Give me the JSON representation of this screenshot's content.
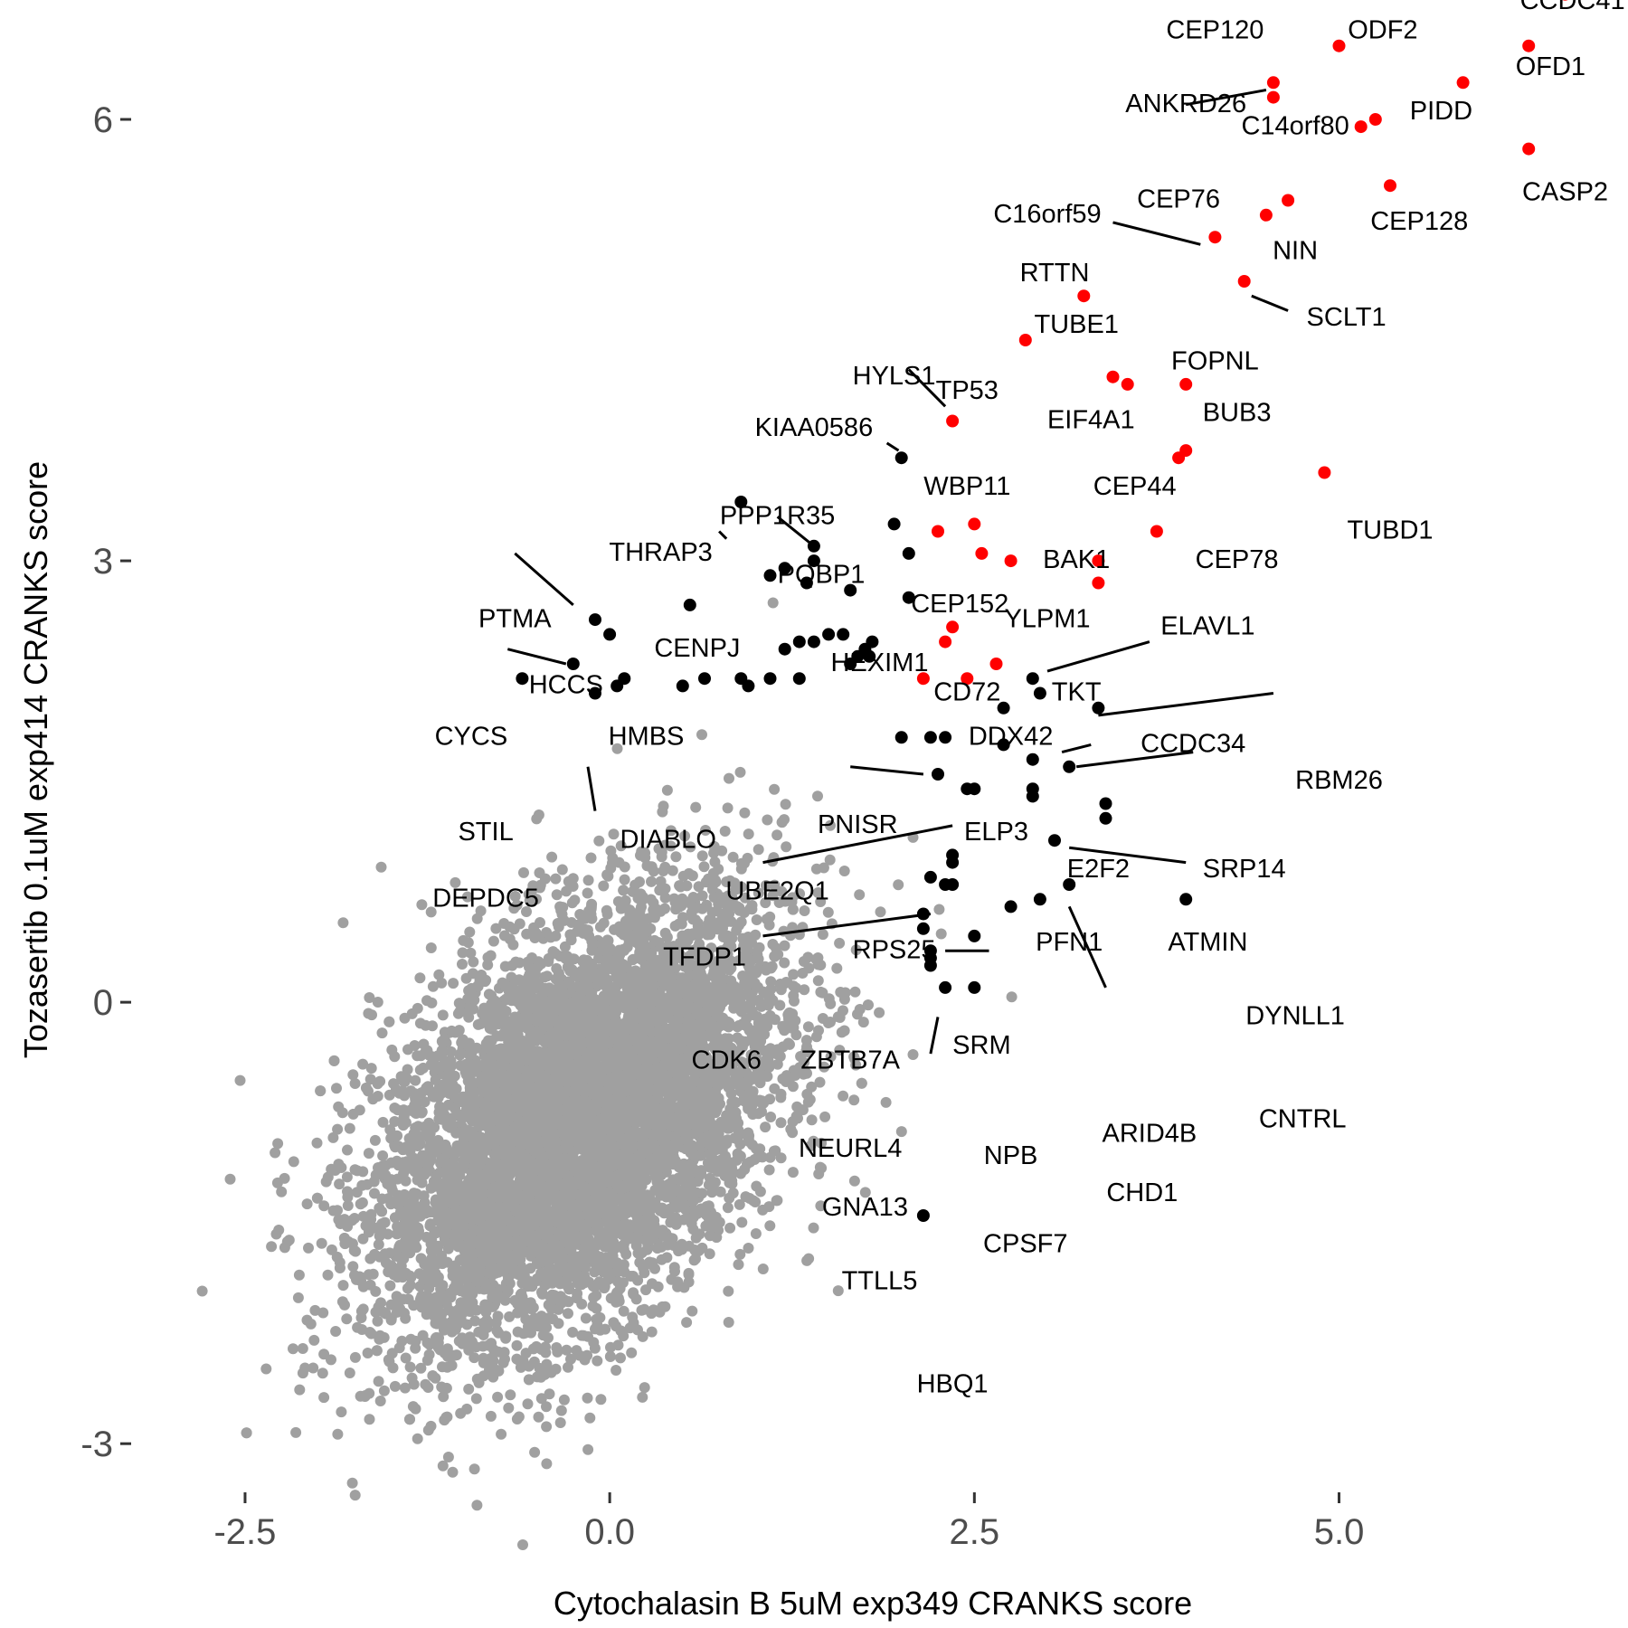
{
  "chart_data": {
    "type": "scatter",
    "xlabel": "Cytochalasin B 5uM exp349 CRANKS score",
    "ylabel": "Tozasertib 0.1uM exp414 CRANKS score",
    "xlim": [
      -3.25,
      6.95
    ],
    "ylim": [
      -3.3,
      6.75
    ],
    "xticks": [
      -2.5,
      0.0,
      2.5,
      5.0
    ],
    "xtick_labels": [
      "-2.5",
      "0.0",
      "2.5",
      "5.0"
    ],
    "yticks": [
      -3,
      0,
      3,
      6
    ],
    "ytick_labels": [
      "-3",
      "0",
      "3",
      "6"
    ],
    "grid": false,
    "legend": "none",
    "colors": {
      "background": "#a0a0a0",
      "hit": "#ff0000",
      "labeled": "#000000"
    },
    "background_cloud": {
      "description_free_params": true,
      "center": [
        -0.2,
        -0.8
      ],
      "count": 7000,
      "x_sd": 0.6,
      "y_sd": 0.6,
      "correlation": 0.45
    },
    "series": [
      {
        "color": "#ff0000",
        "points": [
          {
            "label": "C2CD3",
            "x": 6.65,
            "y": 7.35
          },
          {
            "label": "KIAA0753",
            "x": 6.75,
            "y": 7.2
          },
          {
            "label": "PIBF1",
            "x": 6.45,
            "y": 6.95
          },
          {
            "label": "CCDC41",
            "x": 6.55,
            "y": 6.85
          },
          {
            "label": "OFD1",
            "x": 6.3,
            "y": 6.5
          },
          {
            "label": "CRADD",
            "x": 5.0,
            "y": 6.5
          },
          {
            "label": "ODF2",
            "x": 5.85,
            "y": 6.25
          },
          {
            "label": "CEP120",
            "x": 4.55,
            "y": 6.25
          },
          {
            "label": "ANKRD26",
            "x": 4.55,
            "y": 6.15
          },
          {
            "label": "PIDD",
            "x": 5.25,
            "y": 6.0
          },
          {
            "label": "C14orf80",
            "x": 5.15,
            "y": 5.95
          },
          {
            "label": "CASP2",
            "x": 6.3,
            "y": 5.8
          },
          {
            "label": "CEP128",
            "x": 5.35,
            "y": 5.55
          },
          {
            "label": "CEP76",
            "x": 4.65,
            "y": 5.45
          },
          {
            "label": "NIN",
            "x": 4.5,
            "y": 5.35
          },
          {
            "label": "C16orf59",
            "x": 4.15,
            "y": 5.2
          },
          {
            "label": "SCLT1",
            "x": 4.35,
            "y": 4.9
          },
          {
            "label": "RTTN",
            "x": 3.25,
            "y": 4.8
          },
          {
            "label": "TUBE1",
            "x": 2.85,
            "y": 4.5
          },
          {
            "label": "FOPNL",
            "x": 3.45,
            "y": 4.25
          },
          {
            "label": "EIF4A1",
            "x": 3.55,
            "y": 4.2
          },
          {
            "label": "BUB3",
            "x": 3.95,
            "y": 4.2
          },
          {
            "label": "TP53",
            "x": 2.35,
            "y": 3.95
          },
          {
            "label": "CEP44",
            "x": 3.95,
            "y": 3.75
          },
          {
            "label": "CEP44b",
            "x": 3.9,
            "y": 3.7
          },
          {
            "label": "TUBD1",
            "x": 4.9,
            "y": 3.6
          },
          {
            "label": "WBP11",
            "x": 2.5,
            "y": 3.25
          },
          {
            "label": "WBP11b",
            "x": 2.25,
            "y": 3.2
          },
          {
            "label": "CEP78",
            "x": 3.75,
            "y": 3.2
          },
          {
            "label": "BAK1",
            "x": 3.35,
            "y": 2.85
          },
          {
            "label": "YLPM1",
            "x": 2.55,
            "y": 3.05
          },
          {
            "label": "YLPM1b",
            "x": 2.75,
            "y": 3.0
          },
          {
            "label": "ELAVL1",
            "x": 3.35,
            "y": 3.0
          },
          {
            "label": "CD72",
            "x": 2.35,
            "y": 2.55
          },
          {
            "label": "DDX42",
            "x": 2.3,
            "y": 2.45
          },
          {
            "label": "DDX42b",
            "x": 2.65,
            "y": 2.3
          },
          {
            "label": "CCDC34",
            "x": 2.45,
            "y": 2.2
          },
          {
            "label": "CCDC34b",
            "x": 2.15,
            "y": 2.2
          }
        ]
      },
      {
        "color": "#000000",
        "points": [
          {
            "label": "KIAA0586",
            "x": 2.0,
            "y": 3.7
          },
          {
            "label": "THRAP3",
            "x": 0.9,
            "y": 3.4
          },
          {
            "label": "PPP1R35",
            "x": 1.4,
            "y": 3.1
          },
          {
            "label": "PQBP1",
            "x": 1.95,
            "y": 3.25
          },
          {
            "label": "CEP152",
            "x": 2.05,
            "y": 3.05
          },
          {
            "label": "HEXIM1",
            "x": 1.4,
            "y": 3.0
          },
          {
            "label": "CENPJ",
            "x": 1.1,
            "y": 2.9
          },
          {
            "label": "p1",
            "x": 1.2,
            "y": 2.95
          },
          {
            "label": "p2",
            "x": 1.35,
            "y": 2.85
          },
          {
            "label": "p3",
            "x": 1.65,
            "y": 2.8
          },
          {
            "label": "CD72k",
            "x": 2.05,
            "y": 2.75
          },
          {
            "label": "PTMA",
            "x": 0.55,
            "y": 2.7
          },
          {
            "label": "HCCS",
            "x": -0.1,
            "y": 2.6
          },
          {
            "label": "HMBS",
            "x": 0.0,
            "y": 2.5
          },
          {
            "label": "p4",
            "x": 1.3,
            "y": 2.45
          },
          {
            "label": "p5",
            "x": 1.5,
            "y": 2.5
          },
          {
            "label": "p6",
            "x": 1.6,
            "y": 2.5
          },
          {
            "label": "p7",
            "x": 1.8,
            "y": 2.45
          },
          {
            "label": "p8",
            "x": 1.2,
            "y": 2.4
          },
          {
            "label": "p9",
            "x": 1.4,
            "y": 2.45
          },
          {
            "label": "p10",
            "x": 1.7,
            "y": 2.35
          },
          {
            "label": "p11",
            "x": 1.75,
            "y": 2.4
          },
          {
            "label": "CYCS",
            "x": -0.25,
            "y": 2.3
          },
          {
            "label": "p12",
            "x": 1.65,
            "y": 2.3
          },
          {
            "label": "p13",
            "x": 1.78,
            "y": 2.35
          },
          {
            "label": "STIL",
            "x": -0.6,
            "y": 2.2
          },
          {
            "label": "p14",
            "x": 0.1,
            "y": 2.2
          },
          {
            "label": "p15",
            "x": 0.65,
            "y": 2.2
          },
          {
            "label": "p16",
            "x": 0.9,
            "y": 2.2
          },
          {
            "label": "p17",
            "x": 1.1,
            "y": 2.2
          },
          {
            "label": "p18",
            "x": 1.3,
            "y": 2.2
          },
          {
            "label": "DIABLO",
            "x": 0.05,
            "y": 2.15
          },
          {
            "label": "p19",
            "x": 0.5,
            "y": 2.15
          },
          {
            "label": "p20",
            "x": 0.95,
            "y": 2.15
          },
          {
            "label": "DEPDC5",
            "x": -0.1,
            "y": 2.1
          },
          {
            "label": "PNISR",
            "x": 2.9,
            "y": 2.2
          },
          {
            "label": "RBM26",
            "x": 3.35,
            "y": 2.0
          },
          {
            "label": "ELP3",
            "x": 2.7,
            "y": 2.0
          },
          {
            "label": "ELP3b",
            "x": 2.95,
            "y": 2.1
          },
          {
            "label": "p21",
            "x": 2.2,
            "y": 1.8
          },
          {
            "label": "p22",
            "x": 2.3,
            "y": 1.8
          },
          {
            "label": "p23",
            "x": 2.0,
            "y": 1.8
          },
          {
            "label": "E2F2",
            "x": 2.7,
            "y": 1.75
          },
          {
            "label": "SRP14",
            "x": 2.9,
            "y": 1.65
          },
          {
            "label": "p24",
            "x": 3.15,
            "y": 1.6
          },
          {
            "label": "UBE2Q1",
            "x": 2.25,
            "y": 1.55
          },
          {
            "label": "p25",
            "x": 2.9,
            "y": 1.45
          },
          {
            "label": "p26",
            "x": 2.45,
            "y": 1.45
          },
          {
            "label": "p27",
            "x": 2.5,
            "y": 1.45
          },
          {
            "label": "ATMIN",
            "x": 3.4,
            "y": 1.35
          },
          {
            "label": "ATMINb",
            "x": 3.4,
            "y": 1.25
          },
          {
            "label": "p28",
            "x": 2.9,
            "y": 1.4
          },
          {
            "label": "PFN1",
            "x": 3.05,
            "y": 1.1
          },
          {
            "label": "SRM",
            "x": 2.35,
            "y": 1.0
          },
          {
            "label": "RPS25",
            "x": 2.35,
            "y": 0.95
          },
          {
            "label": "p29",
            "x": 2.2,
            "y": 0.85
          },
          {
            "label": "p30",
            "x": 2.3,
            "y": 0.8
          },
          {
            "label": "DYNLL1",
            "x": 3.15,
            "y": 0.8
          },
          {
            "label": "p31",
            "x": 2.35,
            "y": 0.8
          },
          {
            "label": "CNTRL",
            "x": 3.95,
            "y": 0.7
          },
          {
            "label": "ZBTB7A",
            "x": 2.95,
            "y": 0.7
          },
          {
            "label": "ARID4B",
            "x": 2.75,
            "y": 0.65
          },
          {
            "label": "p32",
            "x": 2.15,
            "y": 0.6
          },
          {
            "label": "p33",
            "x": 2.15,
            "y": 0.5
          },
          {
            "label": "NEURL4",
            "x": 2.5,
            "y": 0.45
          },
          {
            "label": "p34",
            "x": 2.2,
            "y": 0.35
          },
          {
            "label": "NPB",
            "x": 2.2,
            "y": 0.3
          },
          {
            "label": "p35",
            "x": 2.2,
            "y": 0.25
          },
          {
            "label": "GNA13",
            "x": 2.3,
            "y": 0.1
          },
          {
            "label": "CPSF7",
            "x": 2.5,
            "y": 0.1
          },
          {
            "label": "HBQ1",
            "x": 2.15,
            "y": -1.45
          }
        ]
      }
    ],
    "annotations": [
      {
        "text": "C2CD3",
        "x": 6.6,
        "y": 7.55
      },
      {
        "text": "KIAA0753",
        "x": 6.55,
        "y": 7.25
      },
      {
        "text": "PIBF1",
        "x": 5.85,
        "y": 7.0
      },
      {
        "text": "CCDC41",
        "x": 6.6,
        "y": 6.75
      },
      {
        "text": "CRADD",
        "x": 4.65,
        "y": 7.0
      },
      {
        "text": "CEP120",
        "x": 4.15,
        "y": 6.55
      },
      {
        "text": "ODF2",
        "x": 5.3,
        "y": 6.55
      },
      {
        "text": "OFD1",
        "x": 6.45,
        "y": 6.3
      },
      {
        "text": "ANKRD26",
        "x": 3.95,
        "y": 6.05
      },
      {
        "text": "C14orf80",
        "x": 4.7,
        "y": 5.9
      },
      {
        "text": "PIDD",
        "x": 5.7,
        "y": 6.0
      },
      {
        "text": "CASP2",
        "x": 6.55,
        "y": 5.45
      },
      {
        "text": "CEP76",
        "x": 3.9,
        "y": 5.4
      },
      {
        "text": "C16orf59",
        "x": 3.0,
        "y": 5.3
      },
      {
        "text": "CEP128",
        "x": 5.55,
        "y": 5.25
      },
      {
        "text": "NIN",
        "x": 4.7,
        "y": 5.05
      },
      {
        "text": "RTTN",
        "x": 3.05,
        "y": 4.9
      },
      {
        "text": "SCLT1",
        "x": 5.05,
        "y": 4.6
      },
      {
        "text": "TUBE1",
        "x": 3.2,
        "y": 4.55
      },
      {
        "text": "FOPNL",
        "x": 4.15,
        "y": 4.3
      },
      {
        "text": "HYLS1",
        "x": 1.95,
        "y": 4.2
      },
      {
        "text": "TP53",
        "x": 2.45,
        "y": 4.1
      },
      {
        "text": "EIF4A1",
        "x": 3.3,
        "y": 3.9
      },
      {
        "text": "BUB3",
        "x": 4.3,
        "y": 3.95
      },
      {
        "text": "KIAA0586",
        "x": 1.4,
        "y": 3.85
      },
      {
        "text": "WBP11",
        "x": 2.45,
        "y": 3.45
      },
      {
        "text": "CEP44",
        "x": 3.6,
        "y": 3.45
      },
      {
        "text": "PPP1R35",
        "x": 1.15,
        "y": 3.25
      },
      {
        "text": "TUBD1",
        "x": 5.35,
        "y": 3.15
      },
      {
        "text": "THRAP3",
        "x": 0.35,
        "y": 3.0
      },
      {
        "text": "BAK1",
        "x": 3.2,
        "y": 2.95
      },
      {
        "text": "CEP78",
        "x": 4.3,
        "y": 2.95
      },
      {
        "text": "PQBP1",
        "x": 1.45,
        "y": 2.85
      },
      {
        "text": "CEP152",
        "x": 2.4,
        "y": 2.65
      },
      {
        "text": "PTMA",
        "x": -0.65,
        "y": 2.55
      },
      {
        "text": "YLPM1",
        "x": 3.0,
        "y": 2.55
      },
      {
        "text": "ELAVL1",
        "x": 4.1,
        "y": 2.5
      },
      {
        "text": "CENPJ",
        "x": 0.6,
        "y": 2.35
      },
      {
        "text": "HEXIM1",
        "x": 1.85,
        "y": 2.25
      },
      {
        "text": "HCCS",
        "x": -0.3,
        "y": 2.1
      },
      {
        "text": "CD72",
        "x": 2.45,
        "y": 2.05
      },
      {
        "text": "TKT",
        "x": 3.2,
        "y": 2.05
      },
      {
        "text": "HMBS",
        "x": 0.25,
        "y": 1.75
      },
      {
        "text": "CYCS",
        "x": -0.95,
        "y": 1.75
      },
      {
        "text": "DDX42",
        "x": 2.75,
        "y": 1.75
      },
      {
        "text": "CCDC34",
        "x": 4.0,
        "y": 1.7
      },
      {
        "text": "RBM26",
        "x": 5.0,
        "y": 1.45
      },
      {
        "text": "PNISR",
        "x": 1.7,
        "y": 1.15
      },
      {
        "text": "STIL",
        "x": -0.85,
        "y": 1.1
      },
      {
        "text": "ELP3",
        "x": 2.65,
        "y": 1.1
      },
      {
        "text": "DIABLO",
        "x": 0.4,
        "y": 1.05
      },
      {
        "text": "E2F2",
        "x": 3.35,
        "y": 0.85
      },
      {
        "text": "SRP14",
        "x": 4.35,
        "y": 0.85
      },
      {
        "text": "UBE2Q1",
        "x": 1.15,
        "y": 0.7
      },
      {
        "text": "DEPDC5",
        "x": -0.85,
        "y": 0.65
      },
      {
        "text": "PFN1",
        "x": 3.15,
        "y": 0.35
      },
      {
        "text": "ATMIN",
        "x": 4.1,
        "y": 0.35
      },
      {
        "text": "TFDP1",
        "x": 0.65,
        "y": 0.25
      },
      {
        "text": "RPS25",
        "x": 1.95,
        "y": 0.3
      },
      {
        "text": "DYNLL1",
        "x": 4.7,
        "y": -0.15
      },
      {
        "text": "SRM",
        "x": 2.55,
        "y": -0.35
      },
      {
        "text": "CDK6",
        "x": 0.8,
        "y": -0.45
      },
      {
        "text": "ZBTB7A",
        "x": 1.65,
        "y": -0.45
      },
      {
        "text": "CNTRL",
        "x": 4.75,
        "y": -0.85
      },
      {
        "text": "ARID4B",
        "x": 3.7,
        "y": -0.95
      },
      {
        "text": "NEURL4",
        "x": 1.65,
        "y": -1.05
      },
      {
        "text": "NPB",
        "x": 2.75,
        "y": -1.1
      },
      {
        "text": "CHD1",
        "x": 3.65,
        "y": -1.35
      },
      {
        "text": "GNA13",
        "x": 1.75,
        "y": -1.45
      },
      {
        "text": "CPSF7",
        "x": 2.85,
        "y": -1.7
      },
      {
        "text": "TTLL5",
        "x": 1.85,
        "y": -1.95
      },
      {
        "text": "HBQ1",
        "x": 2.35,
        "y": -2.65
      }
    ]
  }
}
